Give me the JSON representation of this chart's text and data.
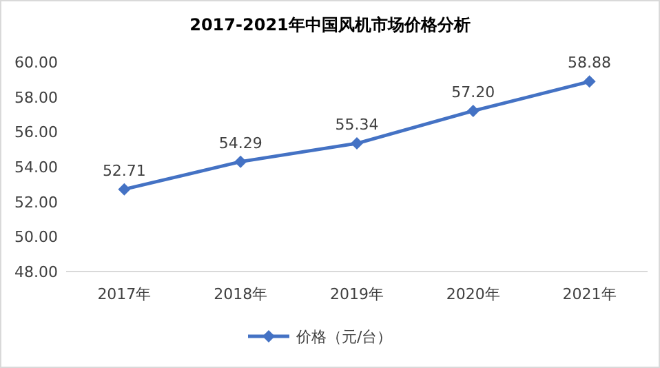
{
  "chart_data": {
    "type": "line",
    "title": "2017-2021年中国风机市场价格分析",
    "categories": [
      "2017年",
      "2018年",
      "2019年",
      "2020年",
      "2021年"
    ],
    "series": [
      {
        "name": "价格（元/台）",
        "color": "#4472c4",
        "values": [
          52.71,
          54.29,
          55.34,
          57.2,
          58.88
        ],
        "value_labels": [
          "52.71",
          "54.29",
          "55.34",
          "57.20",
          "58.88"
        ]
      }
    ],
    "ylim": [
      48,
      60
    ],
    "yticks": [
      {
        "value": 48,
        "label": "48.00"
      },
      {
        "value": 50,
        "label": "50.00"
      },
      {
        "value": 52,
        "label": "52.00"
      },
      {
        "value": 54,
        "label": "54.00"
      },
      {
        "value": 56,
        "label": "56.00"
      },
      {
        "value": 58,
        "label": "58.00"
      },
      {
        "value": 60,
        "label": "60.00"
      }
    ],
    "grid": false,
    "legend": "bottom",
    "marker": "diamond",
    "line_style": "solid"
  }
}
